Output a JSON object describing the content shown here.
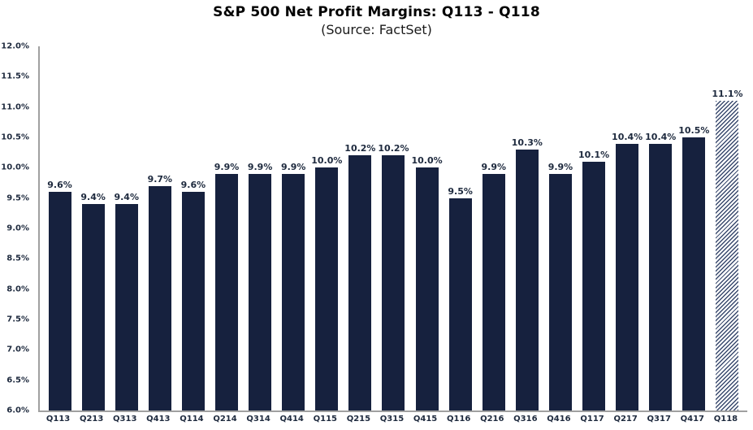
{
  "colors": {
    "bar": "#16213E",
    "bar_hatch_stripe": "#3A4A6E",
    "label_text": "#1E2A3E",
    "axis_line": "#A0A0A0",
    "title_text": "#000000"
  },
  "chart_data": {
    "type": "bar",
    "title": "S&P 500 Net Profit Margins: Q113 - Q118",
    "subtitle": "(Source: FactSet)",
    "xlabel": "",
    "ylabel": "",
    "categories": [
      "Q113",
      "Q213",
      "Q313",
      "Q413",
      "Q114",
      "Q214",
      "Q314",
      "Q414",
      "Q115",
      "Q215",
      "Q315",
      "Q415",
      "Q116",
      "Q216",
      "Q316",
      "Q416",
      "Q117",
      "Q217",
      "Q317",
      "Q417",
      "Q118"
    ],
    "values": [
      9.6,
      9.4,
      9.4,
      9.7,
      9.6,
      9.9,
      9.9,
      9.9,
      10.0,
      10.2,
      10.2,
      10.0,
      9.5,
      9.9,
      10.3,
      9.9,
      10.1,
      10.4,
      10.4,
      10.5,
      11.1
    ],
    "data_labels": [
      "9.6%",
      "9.4%",
      "9.4%",
      "9.7%",
      "9.6%",
      "9.9%",
      "9.9%",
      "9.9%",
      "10.0%",
      "10.2%",
      "10.2%",
      "10.0%",
      "9.5%",
      "9.9%",
      "10.3%",
      "9.9%",
      "10.1%",
      "10.4%",
      "10.4%",
      "10.5%",
      "11.1%"
    ],
    "ylim": [
      6.0,
      12.0
    ],
    "ytick_step": 0.5,
    "ytick_labels_top_to_bottom": [
      "12.0%",
      "11.5%",
      "11.0%",
      "10.5%",
      "10.0%",
      "9.5%",
      "9.0%",
      "8.5%",
      "8.0%",
      "7.5%",
      "7.0%",
      "6.5%",
      "6.0%"
    ],
    "grid": false,
    "legend": "none",
    "last_bar_style": "diagonal-hatch"
  }
}
